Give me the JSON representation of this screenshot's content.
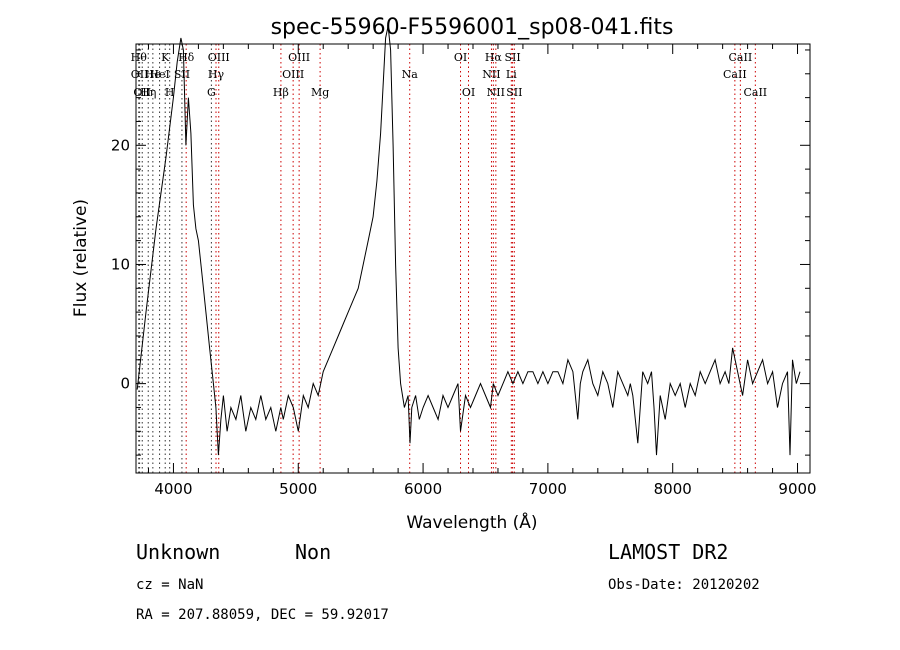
{
  "chart_data": {
    "type": "line",
    "title": "spec-55960-F5596001_sp08-041.fits",
    "xlabel": "Wavelength (Å)",
    "ylabel": "Flux (relative)",
    "xlim": [
      3700,
      9100
    ],
    "ylim": [
      -7.5,
      28.5
    ],
    "xticks": [
      4000,
      5000,
      6000,
      7000,
      8000,
      9000
    ],
    "yticks": [
      0,
      10,
      20
    ],
    "series": [
      {
        "x": [
          3710,
          3780,
          3860,
          3940,
          4000,
          4030,
          4060,
          4080,
          4100,
          4120,
          4140,
          4160,
          4180,
          4200,
          4230,
          4260,
          4290,
          4320,
          4340,
          4360,
          4380,
          4400,
          4430,
          4460,
          4500,
          4540,
          4580,
          4620,
          4660,
          4700,
          4740,
          4780,
          4820,
          4860,
          4880,
          4920,
          4960,
          5000,
          5040,
          5080,
          5120,
          5160,
          5200,
          5240,
          5280,
          5320,
          5360,
          5400,
          5440,
          5480,
          5520,
          5560,
          5600,
          5630,
          5660,
          5680,
          5700,
          5720,
          5740,
          5760,
          5780,
          5800,
          5820,
          5850,
          5880,
          5895,
          5910,
          5940,
          5970,
          6000,
          6040,
          6080,
          6120,
          6160,
          6200,
          6240,
          6280,
          6300,
          6340,
          6380,
          6420,
          6460,
          6500,
          6540,
          6563,
          6600,
          6640,
          6680,
          6720,
          6760,
          6800,
          6840,
          6880,
          6920,
          6960,
          7000,
          7040,
          7080,
          7120,
          7160,
          7200,
          7240,
          7260,
          7280,
          7320,
          7360,
          7400,
          7440,
          7480,
          7520,
          7560,
          7600,
          7640,
          7660,
          7680,
          7720,
          7760,
          7800,
          7830,
          7850,
          7870,
          7900,
          7940,
          7980,
          8020,
          8060,
          8100,
          8140,
          8180,
          8220,
          8260,
          8300,
          8340,
          8380,
          8420,
          8450,
          8480,
          8520,
          8560,
          8600,
          8640,
          8680,
          8720,
          8760,
          8800,
          8840,
          8880,
          8920,
          8940,
          8960,
          8990,
          9020
        ],
        "y": [
          -0.5,
          6,
          13,
          19,
          24,
          27,
          29,
          28,
          20,
          24,
          21,
          15,
          13,
          12,
          9,
          6,
          3,
          0,
          -2,
          -6,
          -3,
          -1,
          -4,
          -2,
          -3,
          -1,
          -4,
          -2,
          -3,
          -1,
          -3,
          -2,
          -4,
          -2,
          -3,
          -1,
          -2,
          -4,
          -1,
          -2,
          0,
          -1,
          1,
          2,
          3,
          4,
          5,
          6,
          7,
          8,
          10,
          12,
          14,
          17,
          21,
          25,
          29,
          30,
          28,
          20,
          10,
          3,
          0,
          -2,
          -1,
          -5,
          -2,
          -1,
          -3,
          -2,
          -1,
          -2,
          -3,
          -1,
          -2,
          -1,
          0,
          -4,
          -1,
          -2,
          -1,
          0,
          -1,
          -2,
          0,
          -1,
          0,
          1,
          0,
          1,
          0,
          1,
          1,
          0,
          1,
          0,
          1,
          1,
          0,
          2,
          1,
          -3,
          0,
          1,
          2,
          0,
          -1,
          1,
          0,
          -2,
          1,
          0,
          -1,
          0,
          -1,
          -5,
          1,
          0,
          1,
          -2,
          -6,
          -1,
          -3,
          0,
          -1,
          0,
          -2,
          0,
          -1,
          1,
          0,
          1,
          2,
          0,
          1,
          0,
          3,
          1,
          -1,
          2,
          0,
          1,
          2,
          0,
          1,
          -2,
          0,
          1,
          -6,
          2,
          0,
          1
        ]
      }
    ],
    "annotations": [
      {
        "x": 3722,
        "label": "Hθ",
        "row": 1,
        "color": "#333333"
      },
      {
        "x": 3729,
        "label": "OII",
        "row": 2,
        "color": "#333333"
      },
      {
        "x": 3750,
        "label": "OII",
        "row": 3,
        "color": "#333333"
      },
      {
        "x": 3798,
        "label": "Hη",
        "row": 3,
        "color": "#333333"
      },
      {
        "x": 3835,
        "label": "He",
        "row": 2,
        "color": "#333333"
      },
      {
        "x": 3889,
        "label": "HeI",
        "row": 2,
        "color": "#333333"
      },
      {
        "x": 3934,
        "label": "K",
        "row": 1,
        "color": "#333333"
      },
      {
        "x": 3970,
        "label": "H",
        "row": 3,
        "color": "#333333"
      },
      {
        "x": 4068,
        "label": "SII",
        "row": 2,
        "color": "#333333"
      },
      {
        "x": 4102,
        "label": "Hδ",
        "row": 1,
        "color": "#cc0000"
      },
      {
        "x": 4304,
        "label": "G",
        "row": 3,
        "color": "#333333"
      },
      {
        "x": 4341,
        "label": "Hγ",
        "row": 2,
        "color": "#cc0000"
      },
      {
        "x": 4363,
        "label": "OIII",
        "row": 1,
        "color": "#cc0000"
      },
      {
        "x": 4861,
        "label": "Hβ",
        "row": 3,
        "color": "#cc0000"
      },
      {
        "x": 4959,
        "label": "OIII",
        "row": 2,
        "color": "#cc0000"
      },
      {
        "x": 5007,
        "label": "OIII",
        "row": 1,
        "color": "#cc0000"
      },
      {
        "x": 5175,
        "label": "Mg",
        "row": 3,
        "color": "#cc0000"
      },
      {
        "x": 5893,
        "label": "Na",
        "row": 2,
        "color": "#cc0000"
      },
      {
        "x": 6300,
        "label": "OI",
        "row": 1,
        "color": "#cc0000"
      },
      {
        "x": 6364,
        "label": "OI",
        "row": 3,
        "color": "#cc0000"
      },
      {
        "x": 6548,
        "label": "NII",
        "row": 2,
        "color": "#cc0000"
      },
      {
        "x": 6563,
        "label": "Hα",
        "row": 1,
        "color": "#cc0000"
      },
      {
        "x": 6583,
        "label": "NII",
        "row": 3,
        "color": "#cc0000"
      },
      {
        "x": 6707,
        "label": "Li",
        "row": 2,
        "color": "#cc0000"
      },
      {
        "x": 6717,
        "label": "SII",
        "row": 1,
        "color": "#cc0000"
      },
      {
        "x": 6731,
        "label": "SII",
        "row": 3,
        "color": "#cc0000"
      },
      {
        "x": 8498,
        "label": "CaII",
        "row": 2,
        "color": "#cc0000"
      },
      {
        "x": 8542,
        "label": "CaII",
        "row": 1,
        "color": "#cc0000"
      },
      {
        "x": 8662,
        "label": "CaII",
        "row": 3,
        "color": "#cc0000"
      }
    ]
  },
  "footer": {
    "classification": "Unknown",
    "subclass": "Non",
    "cz": "cz = NaN",
    "coords": "RA = 207.88059, DEC =  59.92017",
    "survey": "LAMOST DR2",
    "obs_date": "Obs-Date: 20120202"
  }
}
